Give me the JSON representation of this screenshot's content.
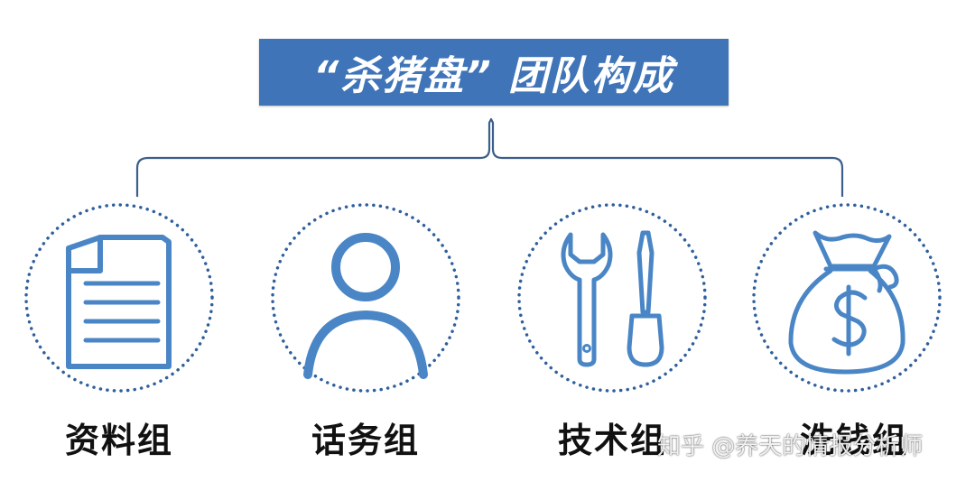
{
  "title": "“杀猪盘” 团队构成",
  "groups": [
    {
      "label": "资料组",
      "icon": "document-icon"
    },
    {
      "label": "话务组",
      "icon": "person-icon"
    },
    {
      "label": "技术组",
      "icon": "tools-icon"
    },
    {
      "label": "洗钱组",
      "icon": "money-bag-icon"
    }
  ],
  "watermark": "知乎 @养天的情报分析师",
  "colors": {
    "accent": "#3f74b8",
    "icon": "#4a86c6",
    "dots": "#2f5f9c",
    "bracket": "#3b5f8a",
    "text": "#111111"
  }
}
